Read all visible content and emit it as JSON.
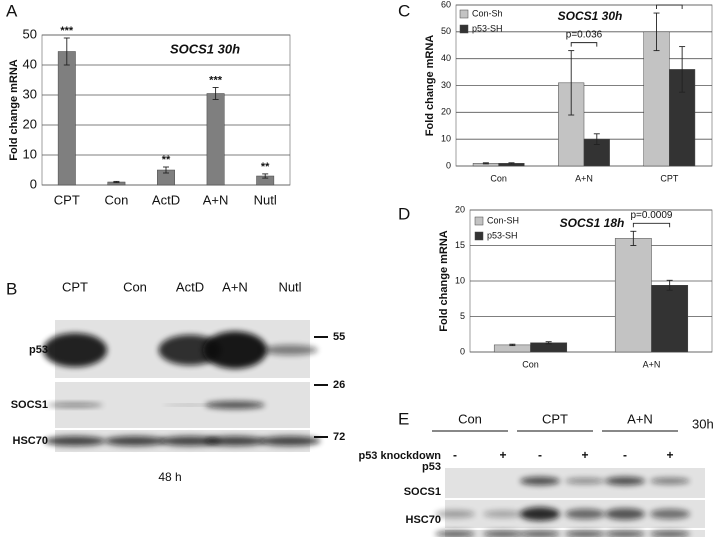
{
  "panel_labels": [
    "A",
    "B",
    "C",
    "D",
    "E"
  ],
  "chart_data": [
    {
      "type": "bar",
      "title": "SOCS1 30h",
      "y_label": "Fold change mRNA",
      "categories": [
        "CPT",
        "Con",
        "ActD",
        "A+N",
        "Nutl"
      ],
      "series": [
        {
          "name": null,
          "color": "#7f7f7f",
          "values": [
            44.5,
            1,
            5,
            30.5,
            3
          ],
          "errors": [
            4.5,
            0.2,
            1,
            2,
            0.7
          ]
        }
      ],
      "value_annotations": [
        "***",
        null,
        "**",
        "***",
        "**"
      ],
      "ylim": [
        0,
        50
      ],
      "yticks": [
        0,
        10,
        20,
        30,
        40,
        50
      ],
      "grid": true
    },
    {
      "type": "bar",
      "title": "SOCS1 30h",
      "y_label": "Fold change mRNA",
      "categories": [
        "Con",
        "A+N",
        "CPT"
      ],
      "series": [
        {
          "name": "Con-Sh",
          "color": "#c3c3c3",
          "values": [
            1,
            31,
            50
          ],
          "errors": [
            0.2,
            12,
            7
          ]
        },
        {
          "name": "p53-SH",
          "color": "#333333",
          "values": [
            1,
            10,
            36
          ],
          "errors": [
            0.2,
            2,
            8.5
          ]
        }
      ],
      "annotations": [
        {
          "text": "p=0.036",
          "category": "A+N"
        },
        {
          "text": "N.S.",
          "category": "CPT"
        }
      ],
      "ylim": [
        0,
        60
      ],
      "yticks": [
        0,
        10,
        20,
        30,
        40,
        50,
        60
      ],
      "grid": true
    },
    {
      "type": "bar",
      "title": "SOCS1 18h",
      "y_label": "Fold change mRNA",
      "categories": [
        "Con",
        "A+N"
      ],
      "series": [
        {
          "name": "Con-SH",
          "color": "#c3c3c3",
          "values": [
            1,
            16
          ],
          "errors": [
            0.1,
            1
          ]
        },
        {
          "name": "p53-SH",
          "color": "#333333",
          "values": [
            1.3,
            9.4
          ],
          "errors": [
            0.15,
            0.7
          ]
        }
      ],
      "annotations": [
        {
          "text": "p=0.0009",
          "category": "A+N"
        }
      ],
      "ylim": [
        0,
        20
      ],
      "yticks": [
        0,
        5,
        10,
        15,
        20
      ],
      "grid": true
    }
  ],
  "blots": [
    {
      "lanes": [
        "CPT",
        "Con",
        "ActD",
        "A+N",
        "Nutl"
      ],
      "rows": [
        "p53",
        "SOCS1",
        "HSC70"
      ],
      "markers": [
        55,
        26,
        72
      ],
      "caption": "48 h"
    },
    {
      "groups": [
        "Con",
        "CPT",
        "A+N"
      ],
      "time": "30h",
      "condition": "p53 knockdown",
      "signs": [
        "-",
        "+",
        "-",
        "+",
        "-",
        "+"
      ],
      "rows": [
        "p53",
        "SOCS1",
        "HSC70"
      ]
    }
  ]
}
